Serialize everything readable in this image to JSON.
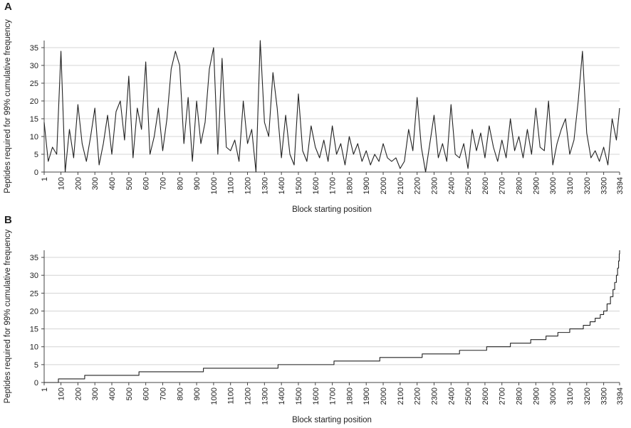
{
  "chart_data": [
    {
      "type": "line",
      "title": "A",
      "ylabel": "Peptides required for 99% cumulative frequency",
      "xlabel": "Block starting position",
      "color": "#222222",
      "grid": true,
      "xlim": [
        1,
        3394
      ],
      "ylim": [
        0,
        37
      ],
      "yticks": [
        0,
        5,
        10,
        15,
        20,
        25,
        30,
        35
      ],
      "xticks": [
        1,
        100,
        200,
        300,
        400,
        500,
        600,
        700,
        800,
        900,
        1000,
        1100,
        1200,
        1300,
        1400,
        1500,
        1600,
        1700,
        1800,
        1900,
        2000,
        2100,
        2200,
        2300,
        2400,
        2500,
        2600,
        2700,
        2800,
        2900,
        3000,
        3100,
        3200,
        3300,
        3394
      ],
      "x": [
        1,
        25,
        50,
        75,
        100,
        125,
        150,
        175,
        200,
        225,
        250,
        275,
        300,
        325,
        350,
        375,
        400,
        425,
        450,
        475,
        500,
        525,
        550,
        575,
        600,
        625,
        650,
        675,
        700,
        725,
        750,
        775,
        800,
        825,
        850,
        875,
        900,
        925,
        950,
        975,
        1000,
        1025,
        1050,
        1075,
        1100,
        1125,
        1150,
        1175,
        1200,
        1225,
        1250,
        1275,
        1300,
        1325,
        1350,
        1375,
        1400,
        1425,
        1450,
        1475,
        1500,
        1525,
        1550,
        1575,
        1600,
        1625,
        1650,
        1675,
        1700,
        1725,
        1750,
        1775,
        1800,
        1825,
        1850,
        1875,
        1900,
        1925,
        1950,
        1975,
        2000,
        2025,
        2050,
        2075,
        2100,
        2125,
        2150,
        2175,
        2200,
        2225,
        2250,
        2275,
        2300,
        2325,
        2350,
        2375,
        2400,
        2425,
        2450,
        2475,
        2500,
        2525,
        2550,
        2575,
        2600,
        2625,
        2650,
        2675,
        2700,
        2725,
        2750,
        2775,
        2800,
        2825,
        2850,
        2875,
        2900,
        2925,
        2950,
        2975,
        3000,
        3025,
        3050,
        3075,
        3100,
        3125,
        3150,
        3175,
        3200,
        3225,
        3250,
        3275,
        3300,
        3325,
        3350,
        3375,
        3394
      ],
      "values": [
        14,
        3,
        7,
        5,
        34,
        0,
        12,
        4,
        19,
        8,
        3,
        10,
        18,
        2,
        8,
        16,
        5,
        17,
        20,
        9,
        27,
        4,
        18,
        12,
        31,
        5,
        10,
        18,
        6,
        15,
        29,
        34,
        30,
        8,
        21,
        3,
        20,
        8,
        14,
        29,
        35,
        5,
        32,
        7,
        6,
        9,
        3,
        20,
        8,
        12,
        0,
        37,
        14,
        10,
        28,
        18,
        4,
        16,
        5,
        2,
        22,
        6,
        3,
        13,
        7,
        4,
        9,
        3,
        13,
        5,
        8,
        2,
        10,
        5,
        8,
        3,
        6,
        2,
        5,
        3,
        8,
        4,
        3,
        4,
        1,
        3,
        12,
        6,
        21,
        7,
        0,
        8,
        16,
        4,
        8,
        3,
        19,
        5,
        4,
        8,
        1,
        12,
        6,
        11,
        4,
        13,
        7,
        3,
        9,
        4,
        15,
        6,
        10,
        4,
        12,
        5,
        18,
        7,
        6,
        20,
        2,
        8,
        12,
        15,
        5,
        9,
        20,
        34,
        11,
        4,
        6,
        3,
        7,
        2,
        15,
        9,
        18
      ]
    },
    {
      "type": "line",
      "step": true,
      "title": "B",
      "ylabel": "Peptides required for 99% cumulative frequency",
      "xlabel": "Block starting position",
      "color": "#222222",
      "grid": true,
      "xlim": [
        1,
        3394
      ],
      "ylim": [
        0,
        37
      ],
      "yticks": [
        0,
        5,
        10,
        15,
        20,
        25,
        30,
        35
      ],
      "xticks": [
        1,
        100,
        200,
        300,
        400,
        500,
        600,
        700,
        800,
        900,
        1000,
        1100,
        1200,
        1300,
        1400,
        1500,
        1600,
        1700,
        1800,
        1900,
        2000,
        2100,
        2200,
        2300,
        2400,
        2500,
        2600,
        2700,
        2800,
        2900,
        3000,
        3100,
        3200,
        3300,
        3394
      ],
      "x": [
        1,
        85,
        240,
        560,
        940,
        1380,
        1710,
        1980,
        2230,
        2450,
        2610,
        2750,
        2870,
        2960,
        3030,
        3100,
        3180,
        3220,
        3250,
        3280,
        3300,
        3320,
        3340,
        3355,
        3365,
        3375,
        3382,
        3388,
        3392,
        3394
      ],
      "values": [
        0,
        1,
        2,
        3,
        4,
        5,
        6,
        7,
        8,
        9,
        10,
        11,
        12,
        13,
        14,
        15,
        16,
        17,
        18,
        19,
        20,
        22,
        24,
        26,
        28,
        30,
        32,
        34,
        36,
        37
      ]
    }
  ]
}
